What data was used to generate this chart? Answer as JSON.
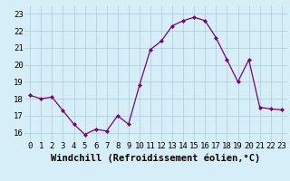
{
  "x": [
    0,
    1,
    2,
    3,
    4,
    5,
    6,
    7,
    8,
    9,
    10,
    11,
    12,
    13,
    14,
    15,
    16,
    17,
    18,
    19,
    20,
    21,
    22,
    23
  ],
  "y": [
    18.2,
    18.0,
    18.1,
    17.3,
    16.5,
    15.9,
    16.2,
    16.1,
    17.0,
    16.5,
    18.8,
    20.9,
    21.4,
    22.3,
    22.6,
    22.8,
    22.6,
    21.6,
    20.3,
    19.0,
    20.3,
    17.5,
    17.4,
    17.35
  ],
  "line_color": "#7b007b",
  "marker_color": "#7b007b",
  "bg_color": "#d6eef8",
  "grid_color": "#aaccdd",
  "xlabel": "Windchill (Refroidissement éolien,°C)",
  "xlabel_fontsize": 7.5,
  "tick_fontsize": 6.5,
  "ylim": [
    15.5,
    23.5
  ],
  "yticks": [
    16,
    17,
    18,
    19,
    20,
    21,
    22,
    23
  ],
  "xticks": [
    0,
    1,
    2,
    3,
    4,
    5,
    6,
    7,
    8,
    9,
    10,
    11,
    12,
    13,
    14,
    15,
    16,
    17,
    18,
    19,
    20,
    21,
    22,
    23
  ]
}
